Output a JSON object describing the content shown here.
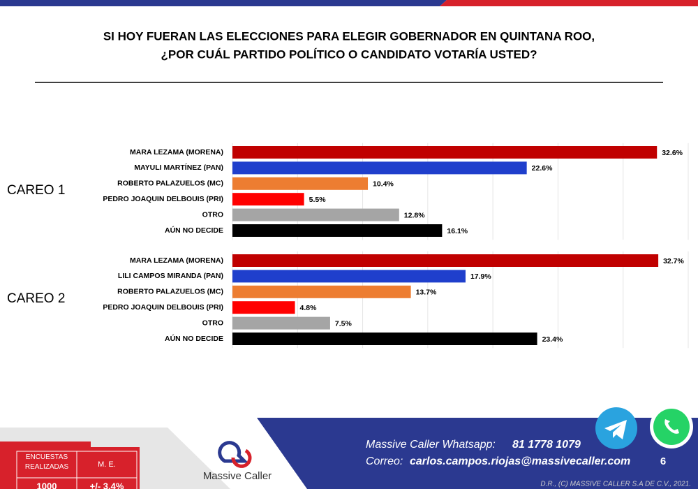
{
  "header": {
    "title_lines": [
      "SI HOY FUERAN LAS ELECCIONES PARA ELEGIR GOBERNADOR EN QUINTANA ROO,",
      "¿POR CUÁL PARTIDO POLÍTICO O CANDIDATO VOTARÍA USTED?"
    ]
  },
  "chart_data": [
    {
      "type": "bar",
      "orientation": "horizontal",
      "label": "CAREO 1",
      "categories": [
        "MARA LEZAMA (MORENA)",
        "MAYULI MARTÍNEZ  (PAN)",
        "ROBERTO PALAZUELOS (MC)",
        "PEDRO JOAQUIN DELBOUIS (PRI)",
        "OTRO",
        "AÚN NO DECIDE"
      ],
      "values": [
        32.6,
        22.6,
        10.4,
        5.5,
        12.8,
        16.1
      ],
      "value_labels": [
        "32.6%",
        "22.6%",
        "10.4%",
        "5.5%",
        "12.8%",
        "16.1%"
      ],
      "colors": [
        "#c00000",
        "#1f3fcc",
        "#ed7d31",
        "#ff0000",
        "#a5a5a5",
        "#000000"
      ],
      "xlim": [
        0,
        35
      ],
      "xticks": [
        0,
        5,
        10,
        15,
        20,
        25,
        30,
        35
      ],
      "grid": true
    },
    {
      "type": "bar",
      "orientation": "horizontal",
      "label": "CAREO 2",
      "categories": [
        "MARA LEZAMA (MORENA)",
        "LILI CAMPOS MIRANDA (PAN)",
        "ROBERTO PALAZUELOS (MC)",
        "PEDRO JOAQUIN DELBOUIS (PRI)",
        "OTRO",
        "AÚN NO DECIDE"
      ],
      "values": [
        32.7,
        17.9,
        13.7,
        4.8,
        7.5,
        23.4
      ],
      "value_labels": [
        "32.7%",
        "17.9%",
        "13.7%",
        "4.8%",
        "7.5%",
        "23.4%"
      ],
      "colors": [
        "#c00000",
        "#1f3fcc",
        "#ed7d31",
        "#ff0000",
        "#a5a5a5",
        "#000000"
      ],
      "xlim": [
        0,
        35
      ],
      "xticks": [
        0,
        5,
        10,
        15,
        20,
        25,
        30,
        35
      ],
      "grid": true
    }
  ],
  "footer": {
    "whatsapp_label": "Massive Caller Whatsapp:",
    "whatsapp_number": "81 1778 1079",
    "email_label": "Correo:",
    "email": "carlos.campos.riojas@massivecaller.com",
    "page": "6",
    "copyright": "D.R., (C) MASSIVE CALLER S.A DE C.V., 2021.",
    "logo": "Massive Caller",
    "table": {
      "headers": [
        "ENCUESTAS REALIZADAS",
        "M. E."
      ],
      "row": [
        "1000",
        "+/- 3.4%"
      ]
    }
  }
}
